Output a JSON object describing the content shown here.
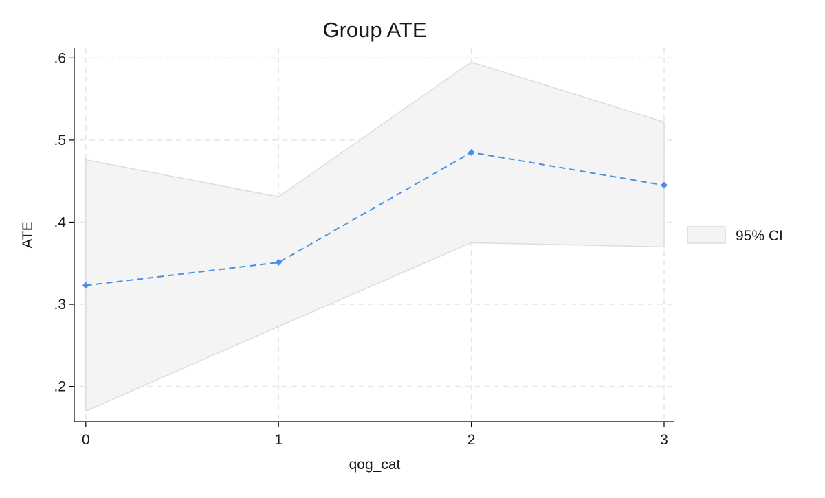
{
  "chart_data": {
    "type": "line",
    "title": "Group ATE",
    "xlabel": "qog_cat",
    "ylabel": "ATE",
    "x": [
      0,
      1,
      2,
      3
    ],
    "x_ticks": [
      "0",
      "1",
      "2",
      "3"
    ],
    "y_ticks": [
      ".2",
      ".3",
      ".4",
      ".5",
      ".6"
    ],
    "xlim": [
      -0.06,
      3.05
    ],
    "ylim": [
      0.157,
      0.612
    ],
    "grid": true,
    "legend_position": "right",
    "series": [
      {
        "name": "",
        "values": [
          0.323,
          0.351,
          0.485,
          0.445
        ],
        "color": "#4a90e2",
        "line_style": "dashed",
        "marker": "diamond"
      }
    ],
    "ci_band": {
      "name": "95% CI",
      "lower": [
        0.17,
        0.273,
        0.375,
        0.37
      ],
      "upper": [
        0.476,
        0.431,
        0.595,
        0.522
      ],
      "fill_color": "#f4f4f4",
      "edge_color": "#dcdcdc"
    }
  }
}
